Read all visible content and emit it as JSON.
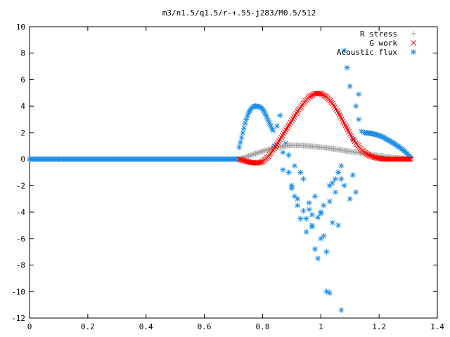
{
  "chart_data": {
    "type": "scatter",
    "title": "m3/n1.5/q1.5/r-+.55-j283/M0.5/512",
    "xlabel": "",
    "ylabel": "",
    "xlim": [
      0,
      1.4
    ],
    "ylim": [
      -12,
      10
    ],
    "xticks": [
      "0",
      "0.2",
      "0.4",
      "0.6",
      "0.8",
      "1",
      "1.2",
      "1.4"
    ],
    "yticks": [
      "-12",
      "-10",
      "-8",
      "-6",
      "-4",
      "-2",
      "0",
      "2",
      "4",
      "6",
      "8",
      "10"
    ],
    "xtick_values": [
      0,
      0.2,
      0.4,
      0.6,
      0.8,
      1.0,
      1.2,
      1.4
    ],
    "ytick_values": [
      -12,
      -10,
      -8,
      -6,
      -4,
      -2,
      0,
      2,
      4,
      6,
      8,
      10
    ],
    "legend_position": "top-right",
    "grid": false,
    "series": [
      {
        "name": "R stress",
        "marker": "plus",
        "color": "#a0a0a0",
        "x": [
          0.72,
          0.76,
          0.8,
          0.84,
          0.88,
          0.9,
          0.94,
          0.98,
          1.02,
          1.06,
          1.1,
          1.14,
          1.18,
          1.22,
          1.26,
          1.3,
          1.31
        ],
        "y": [
          0.0,
          0.3,
          0.6,
          0.85,
          1.0,
          1.05,
          1.02,
          0.95,
          0.85,
          0.72,
          0.58,
          0.45,
          0.32,
          0.2,
          0.1,
          0.03,
          0.0
        ]
      },
      {
        "name": "G work",
        "marker": "cross",
        "color": "#ff0000",
        "x": [
          0.72,
          0.74,
          0.76,
          0.78,
          0.8,
          0.82,
          0.84,
          0.86,
          0.88,
          0.9,
          0.92,
          0.94,
          0.96,
          0.98,
          1.0,
          1.02,
          1.04,
          1.06,
          1.08,
          1.1,
          1.12,
          1.14,
          1.16,
          1.18,
          1.2,
          1.22,
          1.24,
          1.26,
          1.28,
          1.3,
          1.31
        ],
        "y": [
          0.0,
          -0.15,
          -0.25,
          -0.3,
          -0.2,
          0.2,
          0.8,
          1.5,
          2.2,
          2.9,
          3.6,
          4.2,
          4.7,
          4.95,
          4.95,
          4.7,
          4.2,
          3.5,
          2.7,
          1.9,
          1.2,
          0.7,
          0.35,
          0.15,
          0.05,
          0.0,
          0.0,
          0.0,
          0.0,
          0.0,
          0.0
        ]
      },
      {
        "name": "Acoustic flux",
        "marker": "star",
        "color": "#1e8ee6",
        "x_zero_range": [
          0.0,
          0.72
        ],
        "hump": {
          "x": [
            0.72,
            0.73,
            0.74,
            0.75,
            0.76,
            0.77,
            0.78,
            0.79,
            0.8,
            0.81,
            0.82,
            0.83,
            0.84
          ],
          "y": [
            0.9,
            1.8,
            2.7,
            3.4,
            3.8,
            4.0,
            4.0,
            3.95,
            3.8,
            3.4,
            2.9,
            2.4,
            2.0
          ]
        },
        "tail": {
          "x": [
            1.15,
            1.17,
            1.19,
            1.21,
            1.23,
            1.25,
            1.27,
            1.29,
            1.31
          ],
          "y": [
            2.0,
            1.95,
            1.85,
            1.7,
            1.45,
            1.2,
            0.9,
            0.55,
            0.1
          ]
        },
        "scatter": {
          "x": [
            0.85,
            0.87,
            0.89,
            0.9,
            0.92,
            0.93,
            0.95,
            0.96,
            0.97,
            0.98,
            0.99,
            1.0,
            1.01,
            1.02,
            1.03,
            1.05,
            1.06,
            1.07,
            1.08,
            1.09,
            1.1,
            1.11,
            1.12,
            1.13,
            0.86,
            0.88,
            0.91,
            0.94,
            0.97,
            1.0,
            1.03,
            1.04,
            1.06,
            1.1,
            1.12,
            0.89,
            0.92,
            0.95,
            0.98,
            1.01,
            1.04,
            1.07,
            0.84,
            0.9,
            0.93,
            0.96,
            0.99,
            1.02,
            1.05,
            1.08,
            1.11,
            1.13,
            1.14,
            0.87,
            0.91,
            0.94,
            0.97,
            1.0,
            1.03,
            1.07
          ],
          "y": [
            2.5,
            0.5,
            -1.0,
            -2.0,
            -3.0,
            -4.5,
            -5.5,
            -3.8,
            -4.2,
            -6.8,
            -7.5,
            -4.0,
            -3.5,
            -10.0,
            -10.1,
            -2.5,
            -1.0,
            -11.4,
            8.2,
            6.9,
            5.5,
            1.5,
            4.0,
            3.0,
            3.3,
            1.2,
            -0.5,
            -1.5,
            -5.0,
            -6.0,
            -2.0,
            -4.8,
            -5.0,
            -3.0,
            -2.5,
            0.3,
            -3.5,
            -4.5,
            -2.8,
            -5.8,
            -1.8,
            -0.5,
            1.0,
            -2.2,
            -1.0,
            -3.3,
            -4.4,
            -7.0,
            -1.5,
            -2.0,
            -1.2,
            4.9,
            2.1,
            -0.8,
            -2.8,
            -3.9,
            -5.1,
            -4.1,
            -3.2,
            -1.5
          ]
        }
      }
    ]
  }
}
